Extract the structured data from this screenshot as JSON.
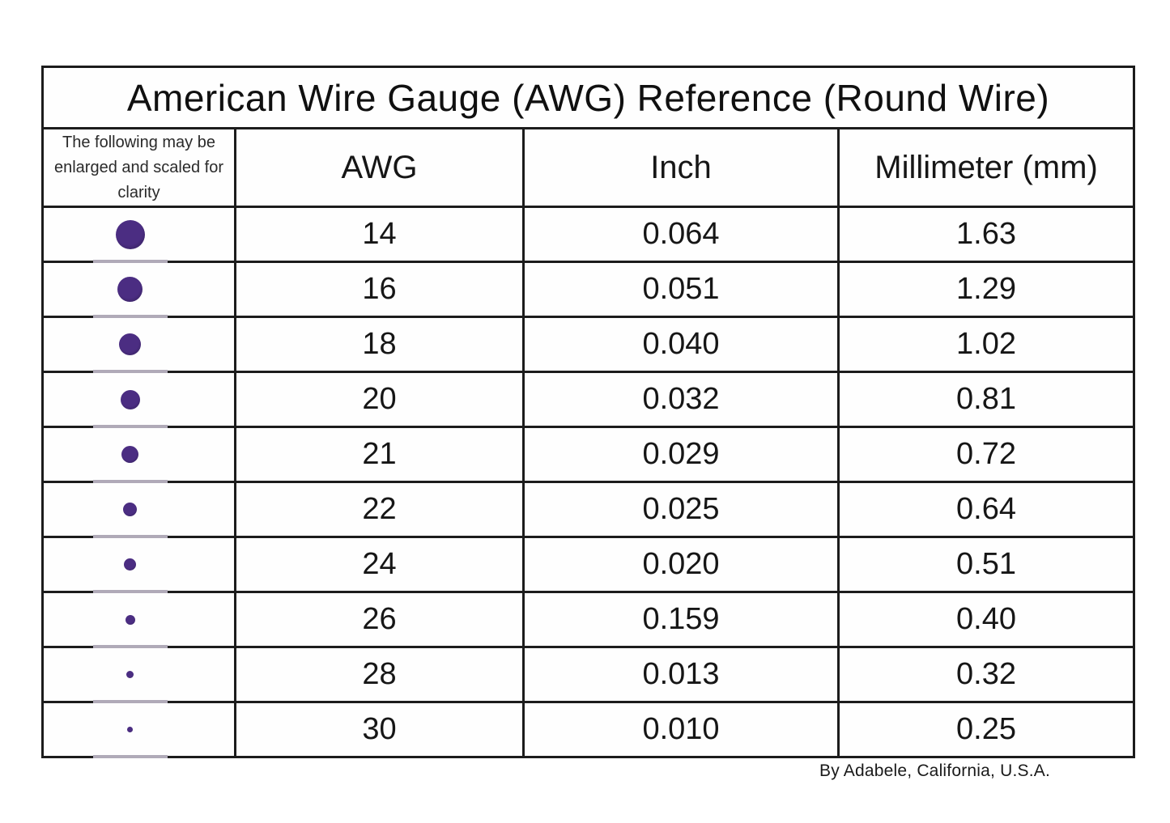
{
  "title": "American Wire Gauge (AWG) Reference (Round Wire)",
  "table": {
    "note": "The following may be enlarged and scaled for clarity",
    "columns": [
      "AWG",
      "Inch",
      "Millimeter (mm)"
    ],
    "rows": [
      {
        "awg": "14",
        "inch": "0.064",
        "mm": "1.63",
        "dot_size": 36
      },
      {
        "awg": "16",
        "inch": "0.051",
        "mm": "1.29",
        "dot_size": 31
      },
      {
        "awg": "18",
        "inch": "0.040",
        "mm": "1.02",
        "dot_size": 27
      },
      {
        "awg": "20",
        "inch": "0.032",
        "mm": "0.81",
        "dot_size": 24
      },
      {
        "awg": "21",
        "inch": "0.029",
        "mm": "0.72",
        "dot_size": 21
      },
      {
        "awg": "22",
        "inch": "0.025",
        "mm": "0.64",
        "dot_size": 17
      },
      {
        "awg": "24",
        "inch": "0.020",
        "mm": "0.51",
        "dot_size": 15
      },
      {
        "awg": "26",
        "inch": "0.159",
        "mm": "0.40",
        "dot_size": 12
      },
      {
        "awg": "28",
        "inch": "0.013",
        "mm": "0.32",
        "dot_size": 9
      },
      {
        "awg": "30",
        "inch": "0.010",
        "mm": "0.25",
        "dot_size": 7
      }
    ]
  },
  "footer": "By Adabele, California, U.S.A.",
  "colors": {
    "dot": "#4b2d82",
    "dot_edge": "#2f1d52",
    "border": "#1c1c1c",
    "dot_underline": "#b0aab8"
  },
  "chart_data": {
    "type": "table",
    "title": "American Wire Gauge (AWG) Reference (Round Wire)",
    "columns": [
      "AWG",
      "Inch",
      "Millimeter (mm)"
    ],
    "rows": [
      [
        14,
        0.064,
        1.63
      ],
      [
        16,
        0.051,
        1.29
      ],
      [
        18,
        0.04,
        1.02
      ],
      [
        20,
        0.032,
        0.81
      ],
      [
        21,
        0.029,
        0.72
      ],
      [
        22,
        0.025,
        0.64
      ],
      [
        24,
        0.02,
        0.51
      ],
      [
        26,
        0.159,
        0.4
      ],
      [
        28,
        0.013,
        0.32
      ],
      [
        30,
        0.01,
        0.25
      ]
    ],
    "annotations": [
      "The following may be enlarged and scaled for clarity",
      "Purple dot glyphs depict relative wire diameters, decreasing as gauge number increases",
      "By Adabele, California, U.S.A."
    ],
    "legend_position": "none",
    "grid": true
  }
}
